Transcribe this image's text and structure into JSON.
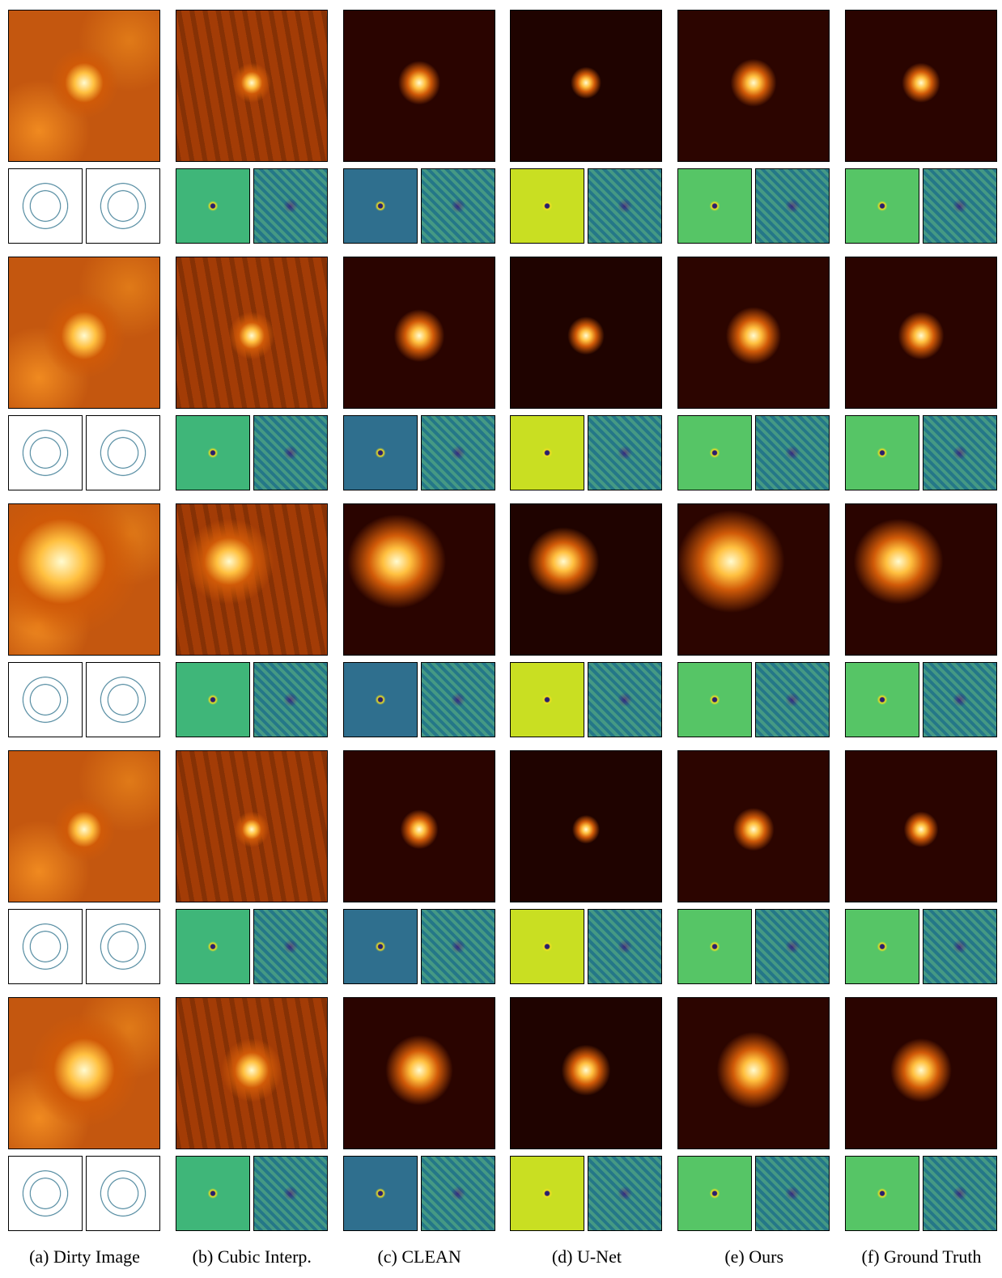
{
  "captions": [
    "(a) Dirty Image",
    "(b) Cubic Interp.",
    "(c) CLEAN",
    "(d) U-Net",
    "(e) Ours",
    "(f) Ground Truth"
  ]
}
